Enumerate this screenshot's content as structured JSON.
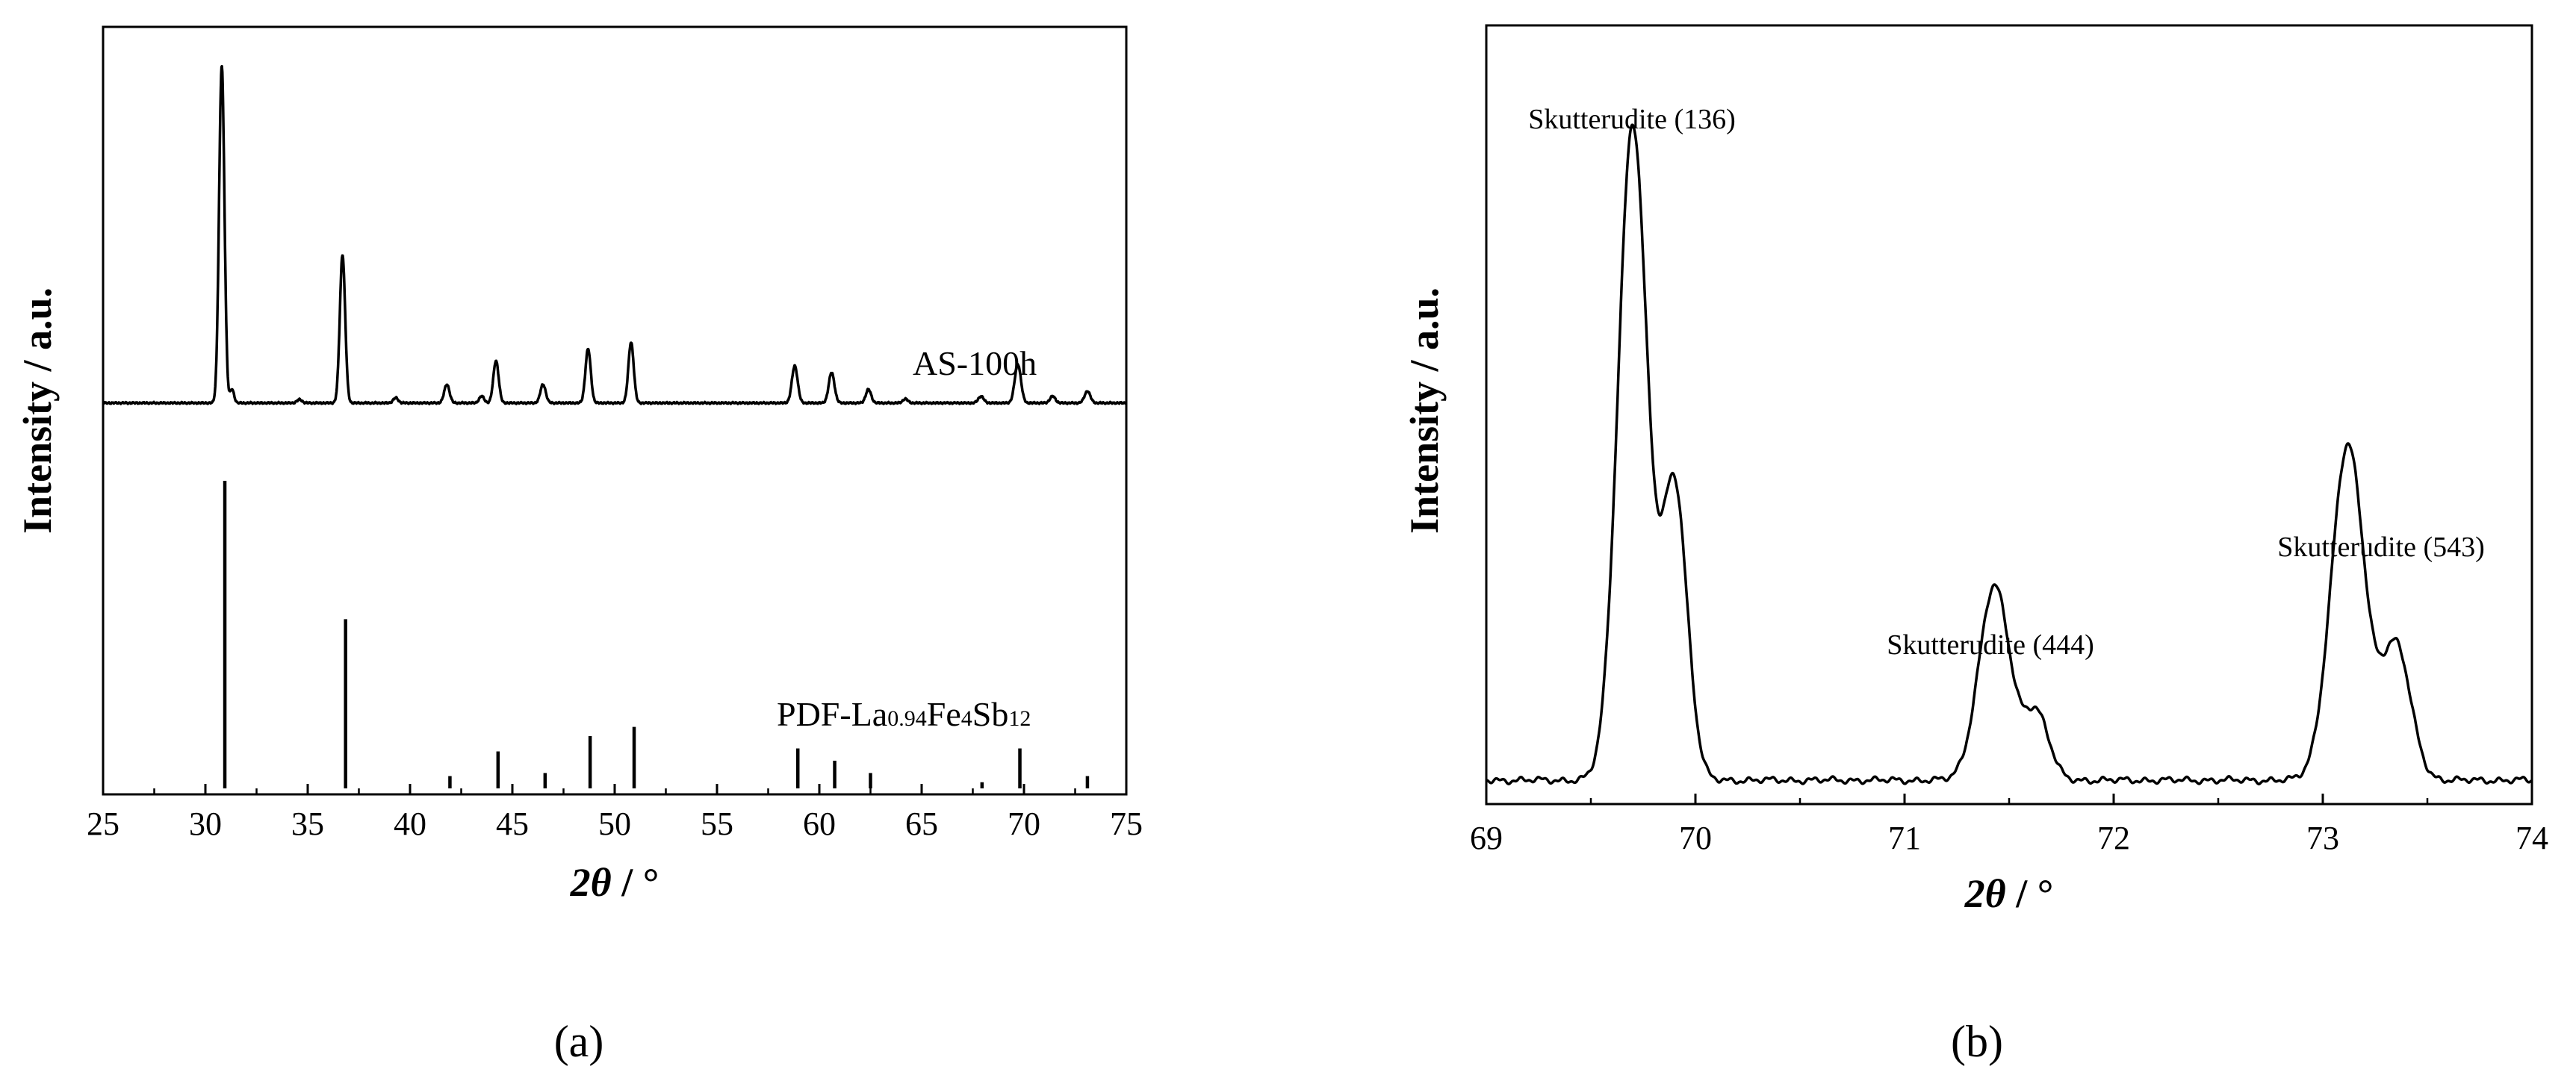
{
  "chart_data": [
    {
      "panel": "a",
      "type": "line",
      "panel_label": "(a)",
      "xlabel": "2θ / °",
      "xlabel_symbol": "2θ",
      "xlabel_unit": " / °",
      "ylabel": "Intensity / a.u.",
      "xlim": [
        25,
        75
      ],
      "xticks": [
        25,
        30,
        35,
        40,
        45,
        50,
        55,
        60,
        65,
        70,
        75
      ],
      "series": [
        {
          "name": "AS-100h",
          "label": "AS-100h",
          "baseline_fraction": 0.49,
          "scale_fraction": 0.44,
          "peaks": [
            {
              "x": 30.8,
              "h": 1.0,
              "w": 0.13
            },
            {
              "x": 31.3,
              "h": 0.04,
              "w": 0.1
            },
            {
              "x": 34.6,
              "h": 0.01,
              "w": 0.12
            },
            {
              "x": 36.7,
              "h": 0.44,
              "w": 0.13
            },
            {
              "x": 39.3,
              "h": 0.015,
              "w": 0.12
            },
            {
              "x": 41.8,
              "h": 0.055,
              "w": 0.13
            },
            {
              "x": 43.5,
              "h": 0.02,
              "w": 0.12
            },
            {
              "x": 44.2,
              "h": 0.125,
              "w": 0.13
            },
            {
              "x": 46.5,
              "h": 0.055,
              "w": 0.13
            },
            {
              "x": 48.7,
              "h": 0.16,
              "w": 0.13
            },
            {
              "x": 50.8,
              "h": 0.18,
              "w": 0.13
            },
            {
              "x": 58.8,
              "h": 0.11,
              "w": 0.14
            },
            {
              "x": 60.6,
              "h": 0.09,
              "w": 0.14
            },
            {
              "x": 62.4,
              "h": 0.04,
              "w": 0.13
            },
            {
              "x": 64.2,
              "h": 0.012,
              "w": 0.12
            },
            {
              "x": 67.9,
              "h": 0.02,
              "w": 0.13
            },
            {
              "x": 69.7,
              "h": 0.115,
              "w": 0.15
            },
            {
              "x": 71.4,
              "h": 0.02,
              "w": 0.13
            },
            {
              "x": 73.1,
              "h": 0.035,
              "w": 0.14
            }
          ]
        },
        {
          "name": "PDF-La0.94Fe4Sb12",
          "label_main": "PDF-La",
          "label_sub1": "0.94",
          "label_mid": "Fe",
          "label_sub2": "4",
          "label_end": "Sb",
          "label_sub3": "12",
          "type": "stick",
          "sticks": [
            {
              "x": 30.95,
              "h": 1.0
            },
            {
              "x": 36.85,
              "h": 0.55
            },
            {
              "x": 41.95,
              "h": 0.04
            },
            {
              "x": 44.3,
              "h": 0.12
            },
            {
              "x": 46.6,
              "h": 0.05
            },
            {
              "x": 48.8,
              "h": 0.17
            },
            {
              "x": 50.95,
              "h": 0.2
            },
            {
              "x": 58.95,
              "h": 0.13
            },
            {
              "x": 60.75,
              "h": 0.09
            },
            {
              "x": 62.5,
              "h": 0.05
            },
            {
              "x": 67.95,
              "h": 0.02
            },
            {
              "x": 69.8,
              "h": 0.13
            },
            {
              "x": 73.1,
              "h": 0.04
            }
          ]
        }
      ]
    },
    {
      "panel": "b",
      "type": "line",
      "panel_label": "(b)",
      "xlabel": "2θ / °",
      "xlabel_symbol": "2θ",
      "xlabel_unit": " / °",
      "ylabel": "Intensity / a.u.",
      "xlim": [
        69,
        74
      ],
      "xticks": [
        69,
        70,
        71,
        72,
        73,
        74
      ],
      "series": [
        {
          "name": "zoom",
          "background": 0.02,
          "peaks": [
            {
              "x": 69.7,
              "h": 0.98,
              "w": 0.07
            },
            {
              "x": 69.9,
              "h": 0.44,
              "w": 0.06
            },
            {
              "x": 71.43,
              "h": 0.29,
              "w": 0.075
            },
            {
              "x": 71.63,
              "h": 0.1,
              "w": 0.06
            },
            {
              "x": 73.12,
              "h": 0.5,
              "w": 0.08
            },
            {
              "x": 73.35,
              "h": 0.2,
              "w": 0.07
            }
          ]
        }
      ],
      "annotations": [
        {
          "text": "Skutterudite (136)",
          "x": 69.7
        },
        {
          "text": "Skutterudite (444)",
          "x": 71.43
        },
        {
          "text": "Skutterudite (543)",
          "x": 73.12
        }
      ]
    }
  ]
}
